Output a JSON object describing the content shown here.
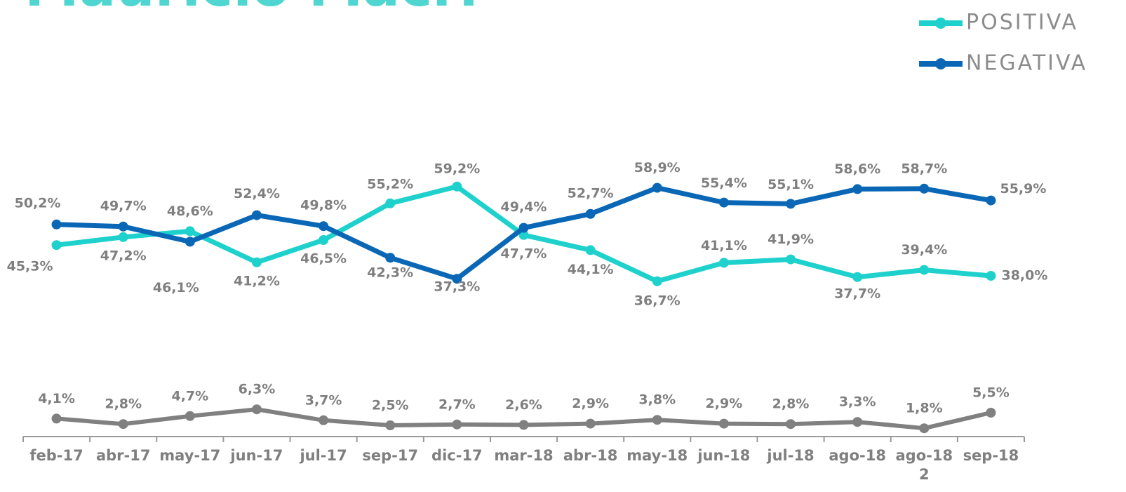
{
  "chart_data": {
    "type": "line",
    "title": "Mauricio Macri",
    "categories": [
      "feb-17",
      "abr-17",
      "may-17",
      "jun-17",
      "jul-17",
      "sep-17",
      "dic-17",
      "mar-18",
      "abr-18",
      "may-18",
      "jun-18",
      "jul-18",
      "ago-18",
      "ago-18\n2",
      "sep-18"
    ],
    "series": [
      {
        "name": "POSITIVA",
        "color": "#1fd1cc",
        "values": [
          45.3,
          47.2,
          48.6,
          41.2,
          46.5,
          55.2,
          59.2,
          47.7,
          44.1,
          36.7,
          41.1,
          41.9,
          37.7,
          39.4,
          38.0
        ],
        "value_labels": [
          "45,3%",
          "47,2%",
          "48,6%",
          "41,2%",
          "46,5%",
          "55,2%",
          "59,2%",
          "47,7%",
          "44,1%",
          "36,7%",
          "41,1%",
          "41,9%",
          "37,7%",
          "39,4%",
          "38,0%"
        ]
      },
      {
        "name": "NEGATIVA",
        "color": "#0a67b5",
        "values": [
          50.2,
          49.7,
          46.1,
          52.4,
          49.8,
          42.3,
          37.3,
          49.4,
          52.7,
          58.9,
          55.4,
          55.1,
          58.6,
          58.7,
          55.9
        ],
        "value_labels": [
          "50,2%",
          "49,7%",
          "46,1%",
          "52,4%",
          "49,8%",
          "42,3%",
          "37,3%",
          "49,4%",
          "52,7%",
          "58,9%",
          "55,4%",
          "55,1%",
          "58,6%",
          "58,7%",
          "55,9%"
        ]
      },
      {
        "color": "#808080",
        "values": [
          4.1,
          2.8,
          4.7,
          6.3,
          3.7,
          2.5,
          2.7,
          2.6,
          2.9,
          3.8,
          2.9,
          2.8,
          3.3,
          1.8,
          5.5
        ],
        "value_labels": [
          "4,1%",
          "2,8%",
          "4,7%",
          "6,3%",
          "3,7%",
          "2,5%",
          "2,7%",
          "2,6%",
          "2,9%",
          "3,8%",
          "2,9%",
          "2,8%",
          "3,3%",
          "1,8%",
          "5,5%"
        ]
      }
    ],
    "legend": "upper right"
  }
}
